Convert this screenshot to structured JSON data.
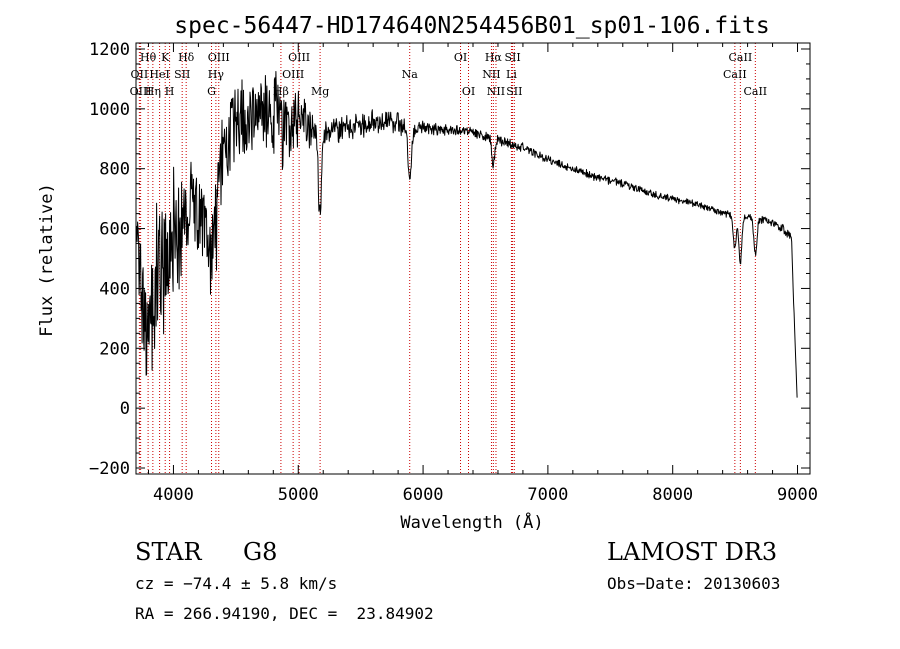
{
  "chart_data": {
    "type": "line",
    "title": "spec-56447-HD174640N254456B01_sp01-106.fits",
    "xlabel": "Wavelength (Å)",
    "ylabel": "Flux (relative)",
    "xlim": [
      3700,
      9100
    ],
    "ylim": [
      -220,
      1220
    ],
    "x_ticks": [
      4000,
      5000,
      6000,
      7000,
      8000,
      9000
    ],
    "y_ticks": [
      -200,
      0,
      200,
      400,
      600,
      800,
      1000,
      1200
    ],
    "series": [
      {
        "name": "spectrum",
        "color": "#000000",
        "anchors_x": [
          3705,
          3750,
          3800,
          3850,
          3900,
          3950,
          4000,
          4050,
          4100,
          4150,
          4200,
          4250,
          4300,
          4350,
          4400,
          4450,
          4500,
          4600,
          4700,
          4800,
          4900,
          5000,
          5100,
          5200,
          5300,
          5400,
          5500,
          5600,
          5700,
          5800,
          5900,
          6000,
          6100,
          6200,
          6300,
          6400,
          6500,
          6600,
          6700,
          6800,
          6900,
          7000,
          7200,
          7400,
          7600,
          7800,
          8000,
          8200,
          8400,
          8600,
          8800,
          8950,
          9000
        ],
        "anchors_y": [
          600,
          350,
          300,
          380,
          450,
          500,
          600,
          560,
          660,
          700,
          640,
          560,
          520,
          660,
          860,
          880,
          960,
          980,
          1000,
          1000,
          970,
          960,
          940,
          920,
          920,
          940,
          930,
          960,
          960,
          950,
          930,
          940,
          930,
          930,
          930,
          920,
          910,
          900,
          880,
          870,
          850,
          830,
          800,
          770,
          750,
          720,
          700,
          680,
          650,
          640,
          620,
          580,
          0
        ],
        "noise": [
          60,
          150,
          200,
          260,
          240,
          220,
          180,
          150,
          120,
          110,
          130,
          140,
          160,
          150,
          150,
          140,
          130,
          110,
          100,
          130,
          110,
          90,
          70,
          40,
          40,
          40,
          40,
          35,
          30,
          30,
          25,
          20,
          20,
          20,
          15,
          15,
          15,
          15,
          14,
          13,
          13,
          12,
          12,
          12,
          11,
          11,
          10,
          10,
          10,
          10,
          12,
          15,
          0
        ],
        "dips": [
          {
            "x": 5174,
            "depth": 280
          },
          {
            "x": 5893,
            "depth": 170
          },
          {
            "x": 4870,
            "depth": 90
          },
          {
            "x": 6563,
            "depth": 90
          },
          {
            "x": 8498,
            "depth": 110
          },
          {
            "x": 8542,
            "depth": 160
          },
          {
            "x": 8662,
            "depth": 120
          }
        ]
      }
    ],
    "lines": [
      {
        "label": "Hθ",
        "x": 3797,
        "row": 1
      },
      {
        "label": "OII",
        "x": 3727,
        "row": 2
      },
      {
        "label": "OIII",
        "x": 3737,
        "row": 3
      },
      {
        "label": "K",
        "x": 3934,
        "row": 1
      },
      {
        "label": "HeI",
        "x": 3889,
        "row": 2
      },
      {
        "label": "Hη",
        "x": 3835,
        "row": 3
      },
      {
        "label": "SII",
        "x": 4070,
        "row": 2
      },
      {
        "label": "H",
        "x": 3969,
        "row": 3
      },
      {
        "label": "Hδ",
        "x": 4102,
        "row": 1
      },
      {
        "label": "OIII",
        "x": 4363,
        "row": 1
      },
      {
        "label": "Hγ",
        "x": 4340,
        "row": 2
      },
      {
        "label": "G",
        "x": 4305,
        "row": 3
      },
      {
        "label": "OIII",
        "x": 5007,
        "row": 1
      },
      {
        "label": "OIII",
        "x": 4959,
        "row": 2
      },
      {
        "label": "Hβ",
        "x": 4861,
        "row": 3
      },
      {
        "label": "Mg",
        "x": 5175,
        "row": 3
      },
      {
        "label": "Na",
        "x": 5893,
        "row": 2
      },
      {
        "label": "OI",
        "x": 6300,
        "row": 1
      },
      {
        "label": "OI",
        "x": 6364,
        "row": 3
      },
      {
        "label": "Hα",
        "x": 6563,
        "row": 1
      },
      {
        "label": "NII",
        "x": 6548,
        "row": 2
      },
      {
        "label": "NII",
        "x": 6584,
        "row": 3
      },
      {
        "label": "SII",
        "x": 6717,
        "row": 1
      },
      {
        "label": "Li",
        "x": 6708,
        "row": 2
      },
      {
        "label": "SII",
        "x": 6731,
        "row": 3
      },
      {
        "label": "CaII",
        "x": 8542,
        "row": 1
      },
      {
        "label": "CaII",
        "x": 8498,
        "row": 2
      },
      {
        "label": "CaII",
        "x": 8662,
        "row": 3
      }
    ],
    "line_color": "#cc0000"
  },
  "info": {
    "class_label": "STAR",
    "subclass": "G8",
    "survey": "LAMOST DR3",
    "cz": "cz = −74.4 ± 5.8 km/s",
    "obs_date": "Obs−Date: 20130603",
    "coords": "RA = 266.94190, DEC =  23.84902"
  }
}
